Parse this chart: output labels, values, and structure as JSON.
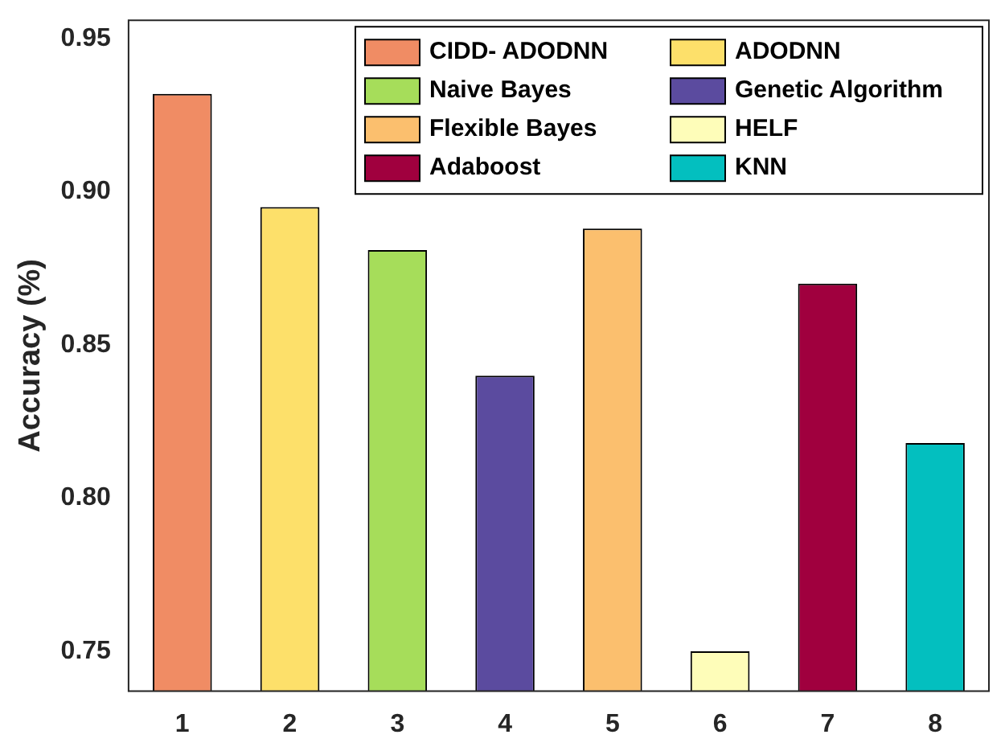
{
  "chart_data": {
    "type": "bar",
    "ylabel": "Accuracy (%)",
    "categories": [
      "1",
      "2",
      "3",
      "4",
      "5",
      "6",
      "7",
      "8"
    ],
    "series": [
      {
        "name": "CIDD- ADODNN",
        "color": "#f08c64",
        "values": [
          0.932,
          null,
          null,
          null,
          null,
          null,
          null,
          null
        ]
      },
      {
        "name": "ADODNN",
        "color": "#fde06a",
        "values": [
          null,
          0.895,
          null,
          null,
          null,
          null,
          null,
          null
        ]
      },
      {
        "name": "Naive Bayes",
        "color": "#a6dd5a",
        "values": [
          null,
          null,
          0.881,
          null,
          null,
          null,
          null,
          null
        ]
      },
      {
        "name": "Genetic Algorithm",
        "color": "#5b4b9f",
        "values": [
          null,
          null,
          null,
          0.84,
          null,
          null,
          null,
          null
        ]
      },
      {
        "name": "Flexible Bayes",
        "color": "#fbbf6e",
        "values": [
          null,
          null,
          null,
          null,
          0.888,
          null,
          null,
          null
        ]
      },
      {
        "name": "HELF",
        "color": "#fefdb9",
        "values": [
          null,
          null,
          null,
          null,
          null,
          0.75,
          null,
          null
        ]
      },
      {
        "name": "Adaboost",
        "color": "#a0003e",
        "values": [
          null,
          null,
          null,
          null,
          null,
          null,
          0.87,
          null
        ]
      },
      {
        "name": "KNN",
        "color": "#03bfbf",
        "values": [
          null,
          null,
          null,
          null,
          null,
          null,
          null,
          0.818
        ]
      }
    ],
    "ylim": [
      0.737,
      0.956
    ],
    "yticks": [
      0.75,
      {
        "value": 0.8,
        "label": "0.80"
      },
      0.85,
      {
        "value": 0.9,
        "label": "0.90"
      },
      0.95
    ],
    "grid": false,
    "legend": "top right"
  }
}
